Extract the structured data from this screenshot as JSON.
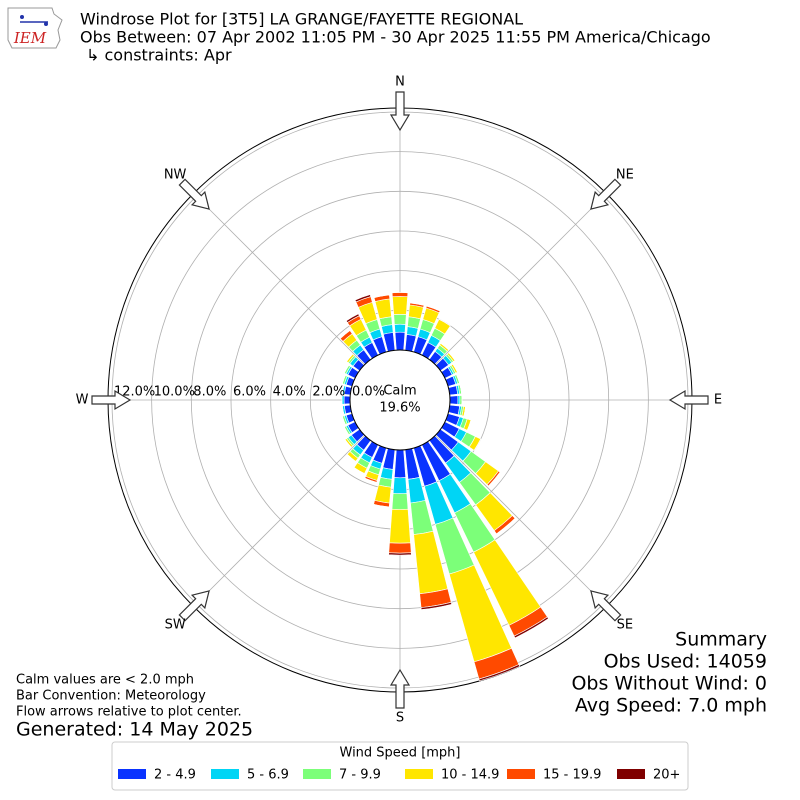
{
  "logo": "IEM",
  "chart_data": {
    "type": "windrose",
    "title": "Windrose Plot for [3T5] LA GRANGE/FAYETTE REGIONAL",
    "subtitle": "Obs Between: 07 Apr 2002 11:05 PM - 30 Apr 2025 11:55 PM America/Chicago",
    "constraints": "↳ constraints: Apr",
    "calm": {
      "label": "Calm",
      "value": 19.6,
      "value_label": "19.6%"
    },
    "x": [
      0,
      10,
      20,
      30,
      40,
      50,
      60,
      70,
      80,
      90,
      100,
      110,
      120,
      130,
      140,
      150,
      160,
      170,
      180,
      190,
      200,
      210,
      220,
      230,
      240,
      250,
      260,
      270,
      280,
      290,
      300,
      310,
      320,
      330,
      340,
      350
    ],
    "xlim": [
      0,
      360
    ],
    "xticks": [
      {
        "value": 0,
        "label": "N"
      },
      {
        "value": 45,
        "label": "NE"
      },
      {
        "value": 90,
        "label": "E"
      },
      {
        "value": 135,
        "label": "SE"
      },
      {
        "value": 180,
        "label": "S"
      },
      {
        "value": 225,
        "label": "SW"
      },
      {
        "value": 270,
        "label": "W"
      },
      {
        "value": 315,
        "label": "NW"
      }
    ],
    "ylim": [
      0,
      12.2
    ],
    "yticks": [
      {
        "value": 0,
        "label": "0.0%"
      },
      {
        "value": 2,
        "label": "2.0%"
      },
      {
        "value": 4,
        "label": "4.0%"
      },
      {
        "value": 6,
        "label": "6.0%"
      },
      {
        "value": 8,
        "label": "8.0%"
      },
      {
        "value": 10,
        "label": "10.0%"
      },
      {
        "value": 12,
        "label": "12.0%"
      }
    ],
    "grid": true,
    "legend_title": "Wind Speed [mph]",
    "series": [
      {
        "name": "2 - 4.9",
        "color": "#0a33ff",
        "values": [
          0.9,
          0.8,
          0.8,
          0.7,
          0.5,
          0.5,
          0.4,
          0.4,
          0.4,
          0.4,
          0.5,
          0.6,
          0.8,
          1.1,
          1.4,
          2.0,
          2.0,
          1.5,
          1.4,
          1.0,
          0.8,
          0.7,
          0.6,
          0.5,
          0.4,
          0.3,
          0.3,
          0.3,
          0.3,
          0.3,
          0.4,
          0.4,
          0.6,
          0.7,
          0.8,
          0.9
        ]
      },
      {
        "name": "5 - 6.9",
        "color": "#00d5f5",
        "values": [
          0.4,
          0.4,
          0.4,
          0.4,
          0.2,
          0.2,
          0.1,
          0.1,
          0.1,
          0.1,
          0.1,
          0.2,
          0.4,
          0.8,
          1.2,
          1.8,
          2.0,
          1.2,
          0.8,
          0.5,
          0.3,
          0.3,
          0.3,
          0.2,
          0.1,
          0.1,
          0.1,
          0.1,
          0.1,
          0.1,
          0.1,
          0.2,
          0.3,
          0.3,
          0.4,
          0.4
        ]
      },
      {
        "name": "7 - 9.9",
        "color": "#7cff79",
        "values": [
          0.5,
          0.5,
          0.5,
          0.4,
          0.2,
          0.1,
          0.1,
          0.1,
          0.1,
          0.1,
          0.1,
          0.2,
          0.5,
          0.9,
          1.4,
          2.2,
          2.6,
          1.6,
          0.8,
          0.4,
          0.3,
          0.3,
          0.2,
          0.1,
          0.1,
          0.1,
          0,
          0,
          0,
          0.1,
          0.1,
          0.1,
          0.3,
          0.4,
          0.5,
          0.4
        ]
      },
      {
        "name": "10 - 14.9",
        "color": "#ffe600",
        "values": [
          0.9,
          0.6,
          0.6,
          0.5,
          0.1,
          0.1,
          0.1,
          0,
          0,
          0,
          0.1,
          0.2,
          0.3,
          0.8,
          1.6,
          4.1,
          4.6,
          3.0,
          1.7,
          0.8,
          0.3,
          0.3,
          0.2,
          0.1,
          0,
          0,
          0,
          0,
          0,
          0,
          0,
          0.1,
          0.4,
          0.6,
          0.9,
          0.9
        ]
      },
      {
        "name": "15 - 19.9",
        "color": "#ff4a00",
        "values": [
          0.2,
          0.1,
          0.1,
          0,
          0,
          0,
          0,
          0,
          0,
          0,
          0,
          0,
          0,
          0.1,
          0.2,
          0.6,
          0.9,
          0.7,
          0.5,
          0.2,
          0.1,
          0,
          0,
          0,
          0,
          0,
          0,
          0,
          0,
          0,
          0,
          0,
          0.2,
          0.2,
          0.3,
          0.2
        ]
      },
      {
        "name": "20+",
        "color": "#7f0000",
        "values": [
          0,
          0,
          0,
          0,
          0,
          0,
          0,
          0,
          0,
          0,
          0,
          0,
          0,
          0,
          0,
          0.1,
          0.1,
          0.1,
          0.1,
          0,
          0,
          0,
          0,
          0,
          0,
          0,
          0,
          0,
          0,
          0,
          0,
          0,
          0,
          0.1,
          0.1,
          0
        ]
      }
    ]
  },
  "summary": {
    "title": "Summary",
    "lines": [
      "Obs Used: 14059",
      "Obs Without Wind: 0",
      "Avg Speed: 7.0 mph"
    ]
  },
  "notes": [
    "Calm values are < 2.0 mph",
    "Bar Convention: Meteorology",
    "Flow arrows relative to plot center."
  ],
  "generated": "Generated: 14 May 2025"
}
